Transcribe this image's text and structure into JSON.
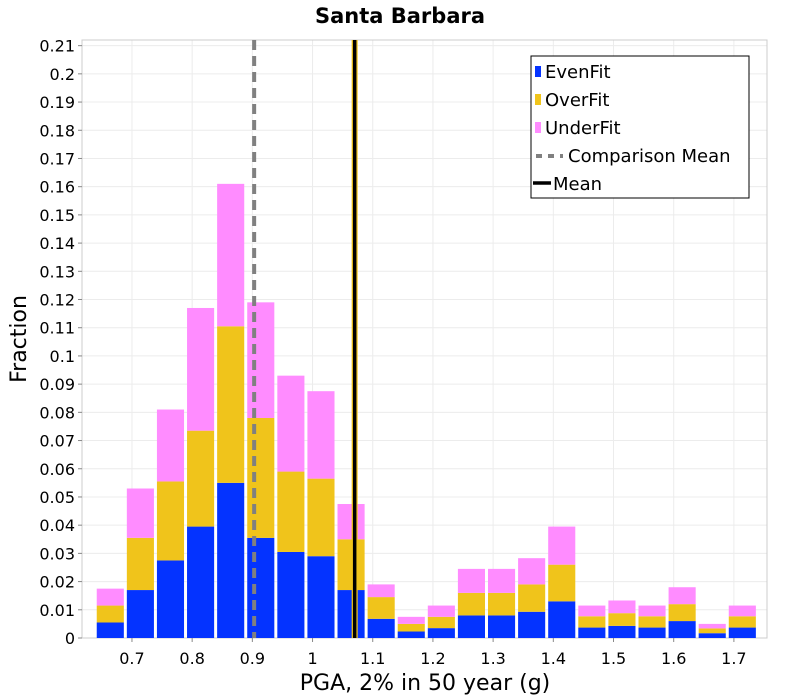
{
  "chart_data": {
    "type": "bar",
    "stacked": true,
    "title": "Santa Barbara",
    "xlabel": "PGA, 2% in 50 year (g)",
    "ylabel": "Fraction",
    "xlim": [
      0.617,
      1.755
    ],
    "ylim": [
      0,
      0.212
    ],
    "x_ticks": [
      "0.7",
      "0.8",
      "0.9",
      "1",
      "1.1",
      "1.2",
      "1.3",
      "1.4",
      "1.5",
      "1.6",
      "1.7"
    ],
    "y_ticks": [
      "0",
      "0.01",
      "0.02",
      "0.03",
      "0.04",
      "0.05",
      "0.06",
      "0.07",
      "0.08",
      "0.09",
      "0.1",
      "0.11",
      "0.12",
      "0.13",
      "0.14",
      "0.15",
      "0.16",
      "0.17",
      "0.18",
      "0.19",
      "0.2",
      "0.21"
    ],
    "grid": true,
    "legend_position": "top-right",
    "x": [
      0.664,
      0.714,
      0.764,
      0.814,
      0.864,
      0.914,
      0.964,
      1.014,
      1.064,
      1.114,
      1.164,
      1.214,
      1.264,
      1.314,
      1.364,
      1.414,
      1.464,
      1.514,
      1.564,
      1.614,
      1.664,
      1.714
    ],
    "series": [
      {
        "name": "EvenFit",
        "color": "#0433ff",
        "values": [
          0.0055,
          0.017,
          0.0275,
          0.0395,
          0.055,
          0.0355,
          0.0305,
          0.029,
          0.017,
          0.0068,
          0.0023,
          0.0035,
          0.008,
          0.008,
          0.0093,
          0.013,
          0.0037,
          0.0043,
          0.0037,
          0.006,
          0.0017,
          0.0037
        ]
      },
      {
        "name": "OverFit",
        "color": "#f0c41b",
        "values": [
          0.006,
          0.0185,
          0.028,
          0.034,
          0.0555,
          0.0425,
          0.0285,
          0.0275,
          0.018,
          0.0077,
          0.0027,
          0.004,
          0.008,
          0.008,
          0.0097,
          0.013,
          0.004,
          0.0045,
          0.004,
          0.006,
          0.0017,
          0.004
        ]
      },
      {
        "name": "UnderFit",
        "color": "#ff8cff",
        "values": [
          0.006,
          0.0175,
          0.0255,
          0.0435,
          0.0505,
          0.041,
          0.034,
          0.031,
          0.0125,
          0.0045,
          0.0025,
          0.004,
          0.0085,
          0.0085,
          0.0093,
          0.0135,
          0.0038,
          0.0045,
          0.0038,
          0.006,
          0.0016,
          0.0038
        ]
      }
    ],
    "lines": [
      {
        "name": "Comparison Mean",
        "x": 0.903,
        "color": "#808080",
        "style": "dashed"
      },
      {
        "name": "Mean",
        "x": 1.07,
        "color": "#000000",
        "style": "solid"
      }
    ]
  }
}
